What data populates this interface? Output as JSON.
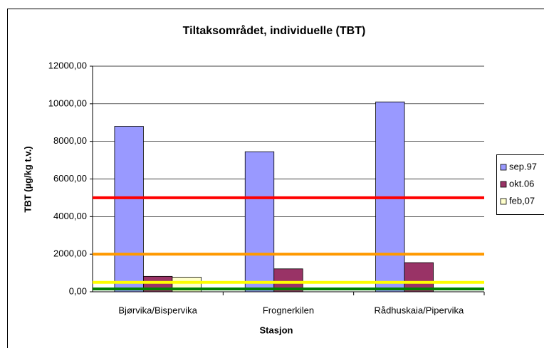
{
  "chart_data": {
    "type": "bar",
    "title": "Tiltaksområdet, individuelle (TBT)",
    "x_label": "Stasjon",
    "y_label": "TBT (µg/kg t.v.)",
    "categories": [
      "Bjørvika/Bispervika",
      "Frognerkilen",
      "Rådhuskaia/Pipervika"
    ],
    "series": [
      {
        "name": "sep.97",
        "color": "#9999ff",
        "values": [
          8800,
          7450,
          10100
        ]
      },
      {
        "name": "okt.06",
        "color": "#993366",
        "values": [
          820,
          1220,
          1550
        ]
      },
      {
        "name": "feb,07",
        "color": "#ffffcc",
        "values": [
          780,
          null,
          null
        ]
      }
    ],
    "reference_lines": [
      {
        "value": 5000,
        "color": "#ff0000"
      },
      {
        "value": 2000,
        "color": "#ff9900"
      },
      {
        "value": 500,
        "color": "#ffff00"
      },
      {
        "value": 150,
        "color": "#008000"
      }
    ],
    "ylim": [
      0,
      12000
    ],
    "yticks": [
      {
        "value": 0,
        "label": "0,00"
      },
      {
        "value": 2000,
        "label": "2000,00"
      },
      {
        "value": 4000,
        "label": "4000,00"
      },
      {
        "value": 6000,
        "label": "6000,00"
      },
      {
        "value": 8000,
        "label": "8000,00"
      },
      {
        "value": 10000,
        "label": "10000,00"
      },
      {
        "value": 12000,
        "label": "12000,00"
      }
    ],
    "grid": true,
    "legend": "right"
  }
}
